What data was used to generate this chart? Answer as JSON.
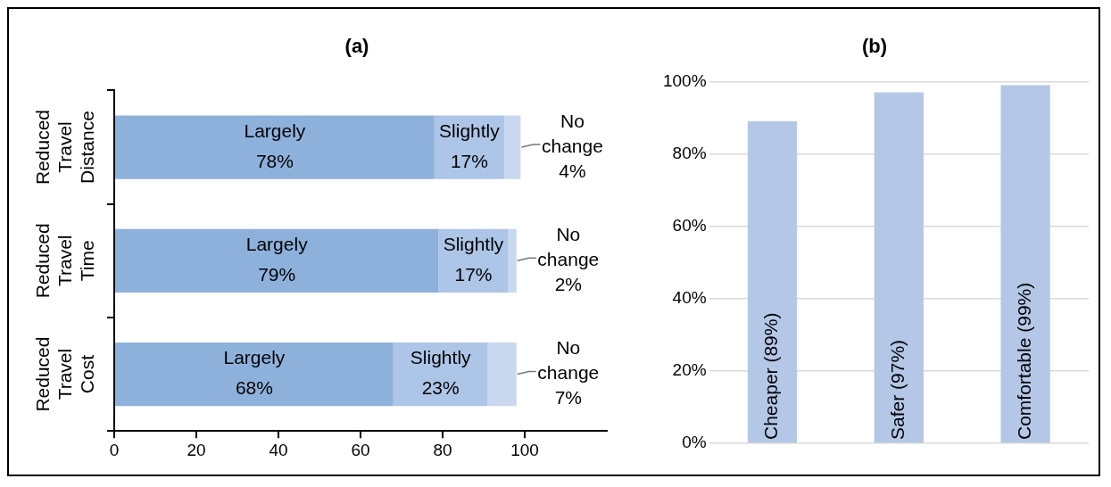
{
  "chart_data": [
    {
      "type": "bar",
      "title": "(a)",
      "orientation": "horizontal",
      "stacked": true,
      "categories": [
        "Reduced Travel Distance",
        "Reduced Travel Time",
        "Reduced Travel Cost"
      ],
      "series": [
        {
          "name": "Largely",
          "color": "#8eb1dc",
          "values": [
            78,
            79,
            68
          ],
          "value_labels": [
            "78%",
            "79%",
            "68%"
          ]
        },
        {
          "name": "Slightly",
          "color": "#adc5e7",
          "values": [
            17,
            17,
            23
          ],
          "value_labels": [
            "17%",
            "17%",
            "23%"
          ]
        },
        {
          "name": "No change",
          "color": "#c9d8ee",
          "values": [
            4,
            2,
            7
          ],
          "value_labels": [
            "4%",
            "2%",
            "7%"
          ]
        }
      ],
      "xlim": [
        0,
        120
      ],
      "xticks": [
        0,
        20,
        40,
        60,
        80,
        100
      ],
      "grid": false,
      "legend": false
    },
    {
      "type": "bar",
      "title": "(b)",
      "categories": [
        "Cheaper (89%)",
        "Safer (97%)",
        "Comfortable (99%)"
      ],
      "values": [
        89,
        97,
        99
      ],
      "color": "#b4c7e7",
      "ylim": [
        0,
        100
      ],
      "yticks": [
        {
          "value": 0,
          "label": "0%"
        },
        {
          "value": 20,
          "label": "20%"
        },
        {
          "value": 40,
          "label": "40%"
        },
        {
          "value": 60,
          "label": "60%"
        },
        {
          "value": 80,
          "label": "80%"
        },
        {
          "value": 100,
          "label": "100%"
        }
      ],
      "grid": "y",
      "legend": false,
      "tick_labels": "y"
    }
  ]
}
